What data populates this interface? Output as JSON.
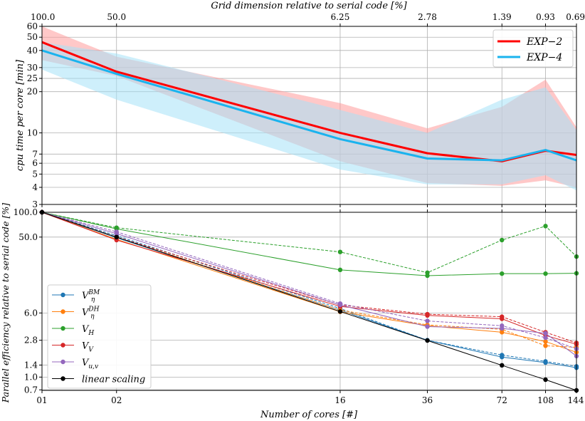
{
  "chart_data": [
    {
      "type": "line",
      "panel": "top",
      "top_axis_label": "Grid dimension relative to serial code [%]",
      "top_tick_labels": [
        "100.0",
        "50.0",
        "6.25",
        "2.78",
        "1.39",
        "0.93",
        "0.69"
      ],
      "ylabel": "cpu time per core [min]",
      "yscale": "log",
      "ylim": [
        3,
        60
      ],
      "yticks": [
        3,
        4,
        5,
        6,
        7,
        10,
        20,
        25,
        30,
        40,
        50,
        60
      ],
      "ytick_labels": [
        "3",
        "4",
        "5",
        "6",
        "7",
        "10",
        "20",
        "25",
        "30",
        "40",
        "50",
        "60"
      ],
      "x": [
        1,
        2,
        16,
        36,
        72,
        108,
        144
      ],
      "grid": true,
      "legend_position": "top-right",
      "series": [
        {
          "name": "EXP-2",
          "color": "#ff0000",
          "fill": "#ff9a9a",
          "values": [
            46,
            28,
            10,
            7.1,
            6.2,
            7.4,
            6.9
          ],
          "lower": [
            34,
            26,
            6.2,
            4.3,
            4.1,
            4.5,
            4.0
          ],
          "upper": [
            60,
            36,
            16.5,
            10.8,
            15.5,
            24.5,
            11.0
          ]
        },
        {
          "name": "EXP-4",
          "color": "#1ab3ee",
          "fill": "#a6e1f7",
          "values": [
            40,
            27,
            9,
            6.5,
            6.3,
            7.5,
            6.3
          ],
          "lower": [
            29,
            17.5,
            5.4,
            4.2,
            4.2,
            4.9,
            3.8
          ],
          "upper": [
            46,
            38,
            14.7,
            10.0,
            17.5,
            21.5,
            10.5
          ]
        }
      ]
    },
    {
      "type": "line",
      "panel": "bottom",
      "ylabel": "Parallel efficiency relative to serial code [%]",
      "xlabel": "Number of cores [#]",
      "yscale": "log",
      "ylim": [
        0.69,
        100
      ],
      "yticks": [
        0.7,
        1.0,
        1.4,
        2.8,
        6.0,
        50.0,
        100.0
      ],
      "ytick_labels": [
        "0.7",
        "1.0",
        "1.4",
        "2.8",
        "6.0",
        "50.0",
        "100.0"
      ],
      "x": [
        1,
        2,
        16,
        36,
        72,
        108,
        144
      ],
      "x_tick_labels": [
        "01",
        "02",
        "16",
        "36",
        "72",
        "108",
        "144"
      ],
      "grid": true,
      "legend_position": "bottom-left",
      "series": [
        {
          "name": "V_η^BM",
          "color": "#1f77b4",
          "solid": [
            100,
            49,
            6.5,
            2.8,
            1.75,
            1.5,
            1.3
          ],
          "dashed": [
            100,
            52,
            6.8,
            2.8,
            1.85,
            1.55,
            1.35
          ]
        },
        {
          "name": "V_η^DH",
          "color": "#ff7f0e",
          "solid": [
            100,
            47,
            6.2,
            4.2,
            3.5,
            2.7,
            2.0
          ],
          "dashed": [
            100,
            50,
            6.5,
            4.3,
            3.8,
            2.4,
            2.3
          ]
        },
        {
          "name": "V_H",
          "color": "#2ca02c",
          "solid": [
            100,
            63,
            20,
            17,
            18,
            18,
            18.2
          ],
          "dashed": [
            100,
            65,
            33,
            18.5,
            46,
            68,
            29
          ]
        },
        {
          "name": "V_V",
          "color": "#d62728",
          "solid": [
            100,
            46,
            7.2,
            5.6,
            5.1,
            3.2,
            2.5
          ],
          "dashed": [
            100,
            50,
            7.5,
            5.8,
            5.4,
            3.5,
            2.6
          ]
        },
        {
          "name": "V_u,v",
          "color": "#9467bd",
          "solid": [
            100,
            55,
            7.5,
            4.1,
            3.9,
            3.4,
            1.8
          ],
          "dashed": [
            100,
            58,
            7.8,
            4.8,
            4.2,
            3.0,
            2.2
          ]
        },
        {
          "name": "linear scaling",
          "color": "#000000",
          "solid": [
            100,
            50,
            6.25,
            2.78,
            1.39,
            0.93,
            0.69
          ]
        }
      ]
    }
  ],
  "legend_top": [
    {
      "label": "EXP−2",
      "color": "#ff0000"
    },
    {
      "label": "EXP−4",
      "color": "#1ab3ee"
    }
  ],
  "legend_bottom": [
    {
      "base": "V",
      "sub": "η",
      "sup": "BM",
      "color": "#1f77b4"
    },
    {
      "base": "V",
      "sub": "η",
      "sup": "DH",
      "color": "#ff7f0e"
    },
    {
      "base": "V",
      "sub": "H",
      "sup": "",
      "color": "#2ca02c"
    },
    {
      "base": "V",
      "sub": "V",
      "sup": "",
      "color": "#d62728"
    },
    {
      "base": "V",
      "sub": "u,v",
      "sup": "",
      "color": "#9467bd"
    },
    {
      "base": "linear scaling",
      "sub": "",
      "sup": "",
      "color": "#000000"
    }
  ]
}
